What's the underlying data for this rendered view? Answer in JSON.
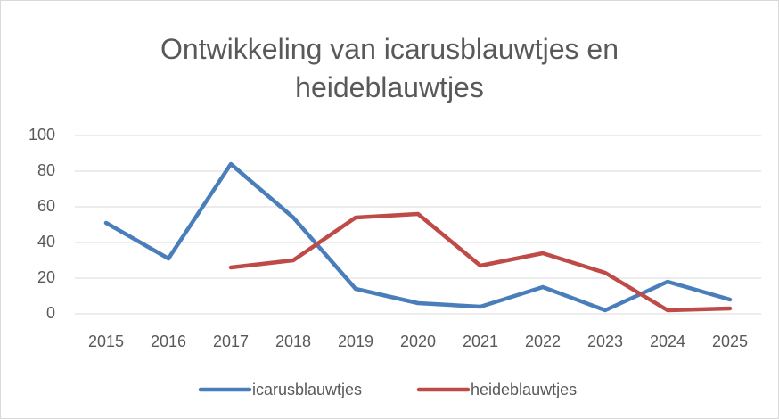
{
  "chart_data": {
    "type": "line",
    "title": "Ontwikkeling van icarusblauwtjes en heideblauwtjes",
    "categories": [
      "2015",
      "2016",
      "2017",
      "2018",
      "2019",
      "2020",
      "2021",
      "2022",
      "2023",
      "2024",
      "2025"
    ],
    "series": [
      {
        "name": "icarusblauwtjes",
        "color": "#4a7ebb",
        "values": [
          51,
          31,
          84,
          54,
          14,
          6,
          4,
          15,
          2,
          18,
          8
        ]
      },
      {
        "name": "heideblauwtjes",
        "color": "#be4b48",
        "values": [
          null,
          null,
          26,
          30,
          54,
          56,
          27,
          34,
          23,
          2,
          3
        ]
      }
    ],
    "ylim": [
      0,
      100
    ],
    "yticks": [
      0,
      20,
      40,
      60,
      80,
      100
    ],
    "grid": true,
    "legend": "bottom"
  }
}
